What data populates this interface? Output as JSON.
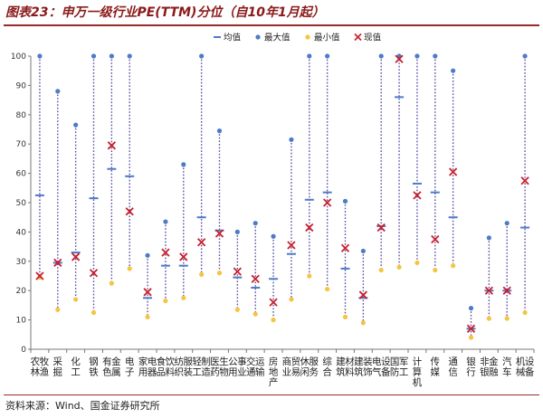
{
  "header": {
    "title": "图表23：申万一级行业PE(TTM)分位（自10年1月起）"
  },
  "footer": {
    "source": "资料来源：Wind、国金证券研究所"
  },
  "chart_data": {
    "type": "scatter",
    "title": "图表23：申万一级行业PE(TTM)分位（自10年1月起）",
    "xlabel": "",
    "ylabel": "",
    "ylim": [
      0,
      100
    ],
    "yticks": [
      0,
      10,
      20,
      30,
      40,
      50,
      60,
      70,
      80,
      90,
      100
    ],
    "grid": false,
    "legend_position": "top-right",
    "colors": {
      "range_line": "#5b4fa3",
      "mean": "#4e7ac7",
      "max": "#4e7ac7",
      "min": "#f4c542",
      "current": "#c8202d",
      "title": "#8b1a1a"
    },
    "categories": [
      "农林牧渔",
      "采掘",
      "化工",
      "钢铁",
      "有色金属",
      "电子",
      "家用电器",
      "食品饮料",
      "纺织服装",
      "轻工制造",
      "医药生物",
      "公用事业",
      "交通运输",
      "房地产",
      "商业贸易",
      "休闲服务",
      "综合",
      "建筑材料",
      "建筑装饰",
      "电气设备",
      "国防军工",
      "计算机",
      "传媒",
      "通信",
      "银行",
      "非银金融",
      "汽车",
      "机械设备"
    ],
    "series": [
      {
        "name": "均值",
        "marker": "dash",
        "values": [
          52.5,
          29.5,
          33,
          51.5,
          61.5,
          59,
          17.5,
          28.5,
          28.5,
          45,
          40.5,
          24.5,
          21,
          24,
          32.5,
          51,
          53.5,
          27.5,
          17.5,
          42,
          86,
          56.5,
          53.5,
          45,
          7,
          20,
          20,
          41.5
        ]
      },
      {
        "name": "最大值",
        "marker": "dot",
        "values": [
          100,
          88,
          76.5,
          100,
          100,
          100,
          32,
          43.5,
          63,
          100,
          74.5,
          40,
          43,
          38.5,
          71.5,
          100,
          100,
          50.5,
          33.5,
          100,
          100,
          100,
          100,
          95,
          14,
          38,
          43,
          100
        ]
      },
      {
        "name": "最小值",
        "marker": "dot",
        "values": [
          24.5,
          13.5,
          17,
          12.5,
          22.5,
          27.5,
          11,
          16.5,
          17.5,
          25.5,
          26,
          13.5,
          12,
          10,
          17,
          25,
          20.5,
          11,
          9,
          27,
          28,
          29.5,
          27,
          28.5,
          4,
          10.5,
          10.5,
          12.5
        ]
      },
      {
        "name": "现值",
        "marker": "x",
        "values": [
          25,
          29.5,
          31.5,
          26,
          69.5,
          47,
          19.5,
          33,
          31.5,
          36.5,
          39.5,
          26.5,
          24,
          16,
          35.5,
          41.5,
          50,
          34.5,
          18.5,
          41.5,
          99,
          52.5,
          37.5,
          60.5,
          7,
          20,
          20,
          57.5
        ]
      }
    ]
  }
}
